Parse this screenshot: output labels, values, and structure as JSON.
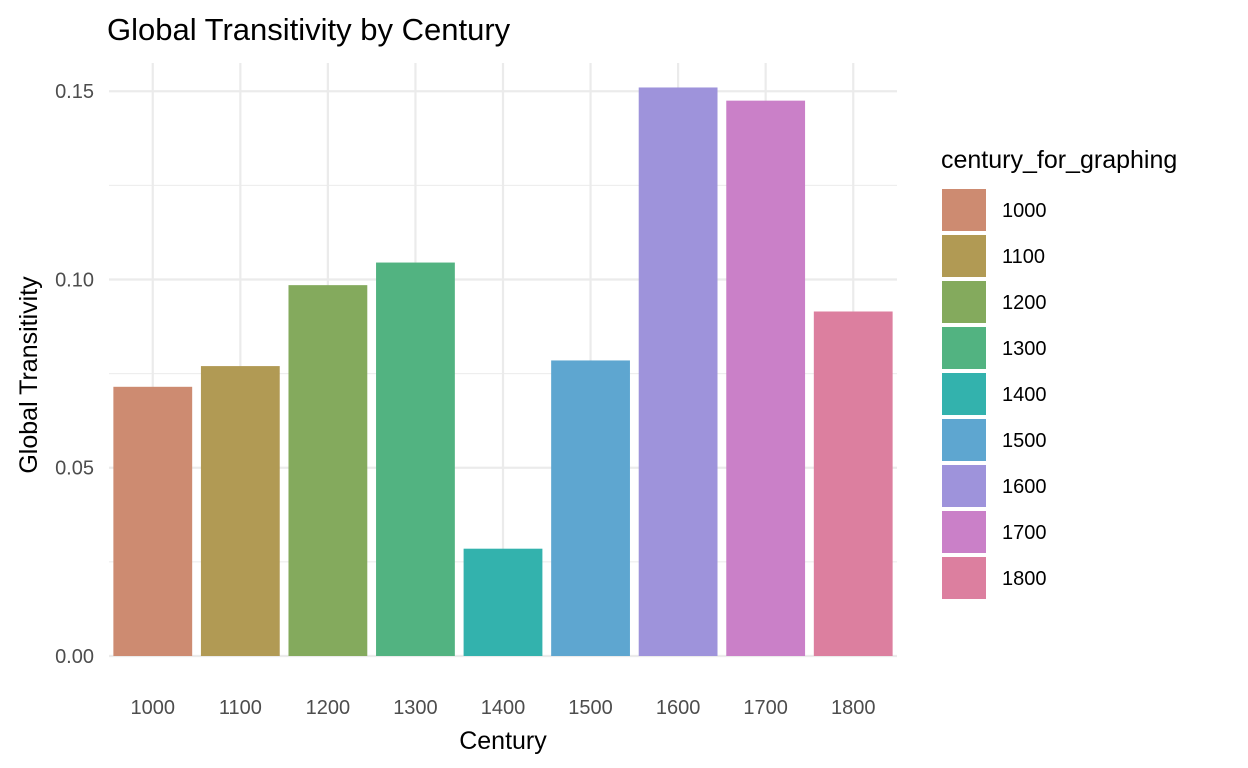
{
  "chart_data": {
    "type": "bar",
    "title": "Global Transitivity by Century",
    "xlabel": "Century",
    "ylabel": "Global Transitivity",
    "categories": [
      "1000",
      "1100",
      "1200",
      "1300",
      "1400",
      "1500",
      "1600",
      "1700",
      "1800"
    ],
    "values": [
      0.0715,
      0.077,
      0.0985,
      0.1045,
      0.0285,
      0.0785,
      0.151,
      0.1475,
      0.0915
    ],
    "colors": [
      "#CD8B71",
      "#B19A54",
      "#84AA5D",
      "#52B381",
      "#33B2AD",
      "#5EA6D0",
      "#9E93DB",
      "#CA80C8",
      "#DC7F9F"
    ],
    "ylim": [
      0,
      0.1575
    ],
    "yticks": [
      0,
      0.05,
      0.1,
      0.15
    ],
    "ytick_labels": [
      "0.00",
      "0.05",
      "0.10",
      "0.15"
    ],
    "grid": true,
    "legend": {
      "title": "century_for_graphing",
      "position": "right",
      "entries": [
        "1000",
        "1100",
        "1200",
        "1300",
        "1400",
        "1500",
        "1600",
        "1700",
        "1800"
      ]
    }
  }
}
